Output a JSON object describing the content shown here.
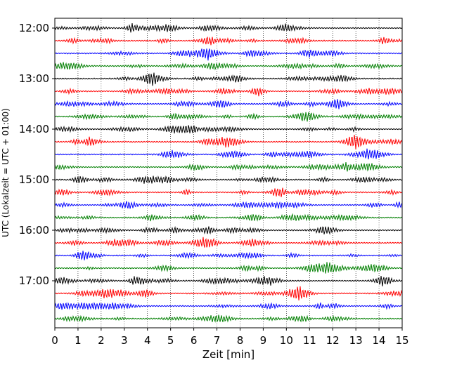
{
  "chart_data": {
    "type": "line",
    "subtype": "helicorder (seismogram drum plot)",
    "xlabel": "Zeit  [min]",
    "ylabel": "UTC (Lokalzeit = UTC + 01:00)",
    "xlim": [
      0,
      15
    ],
    "x_ticks": [
      "0",
      "1",
      "2",
      "3",
      "4",
      "5",
      "6",
      "7",
      "8",
      "9",
      "10",
      "11",
      "12",
      "13",
      "14",
      "15"
    ],
    "y_tick_labels": [
      "12:00",
      "13:00",
      "14:00",
      "15:00",
      "16:00",
      "17:00"
    ],
    "trace_minutes_per_line": 15,
    "trace_colors_cycle": [
      "#000000",
      "#ff0000",
      "#0000ff",
      "#007f00"
    ],
    "traces": [
      {
        "start": "12:00",
        "color": "#000000"
      },
      {
        "start": "12:15",
        "color": "#ff0000"
      },
      {
        "start": "12:30",
        "color": "#0000ff"
      },
      {
        "start": "12:45",
        "color": "#007f00"
      },
      {
        "start": "13:00",
        "color": "#000000"
      },
      {
        "start": "13:15",
        "color": "#ff0000"
      },
      {
        "start": "13:30",
        "color": "#0000ff"
      },
      {
        "start": "13:45",
        "color": "#007f00"
      },
      {
        "start": "14:00",
        "color": "#000000"
      },
      {
        "start": "14:15",
        "color": "#ff0000"
      },
      {
        "start": "14:30",
        "color": "#0000ff"
      },
      {
        "start": "14:45",
        "color": "#007f00"
      },
      {
        "start": "15:00",
        "color": "#000000"
      },
      {
        "start": "15:15",
        "color": "#ff0000"
      },
      {
        "start": "15:30",
        "color": "#0000ff"
      },
      {
        "start": "15:45",
        "color": "#007f00"
      },
      {
        "start": "16:00",
        "color": "#000000"
      },
      {
        "start": "16:15",
        "color": "#ff0000"
      },
      {
        "start": "16:30",
        "color": "#0000ff"
      },
      {
        "start": "16:45",
        "color": "#007f00"
      },
      {
        "start": "17:00",
        "color": "#000000"
      },
      {
        "start": "17:15",
        "color": "#ff0000"
      },
      {
        "start": "17:30",
        "color": "#0000ff"
      },
      {
        "start": "17:45",
        "color": "#007f00"
      }
    ],
    "grid": "vertical dotted at each minute"
  }
}
